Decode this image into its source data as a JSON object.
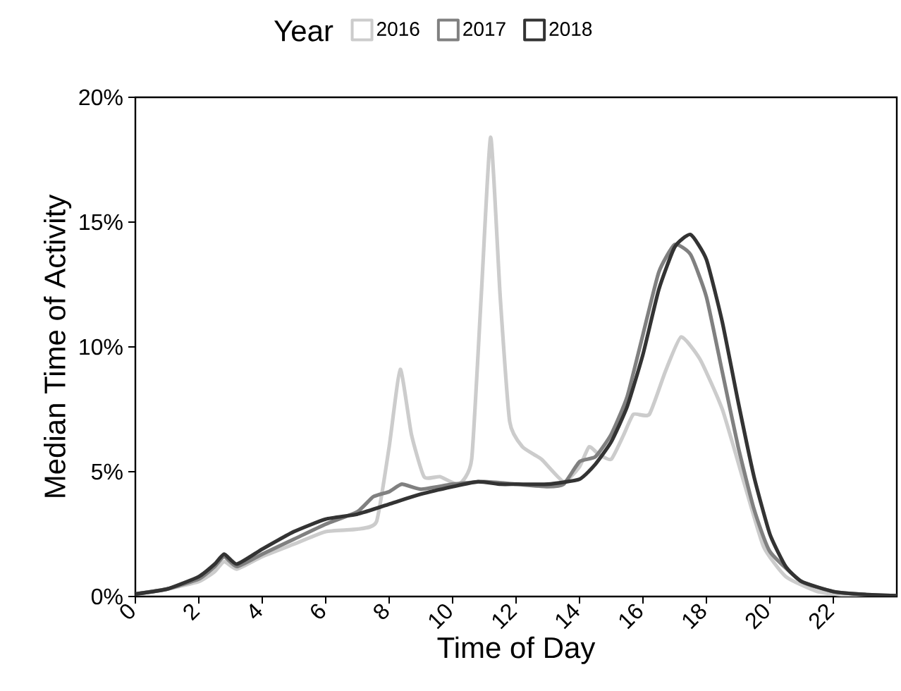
{
  "chart_data": {
    "type": "line",
    "legend_title": "Year",
    "legend": "top",
    "xlabel": "Time of Day",
    "ylabel": "Median Time of Activity",
    "xlim": [
      0,
      24
    ],
    "ylim": [
      0,
      20
    ],
    "xticks": [
      0,
      2,
      4,
      6,
      8,
      10,
      12,
      14,
      16,
      18,
      20,
      22
    ],
    "yticks": [
      {
        "value": 0,
        "label": "0%"
      },
      {
        "value": 5,
        "label": "5%"
      },
      {
        "value": 10,
        "label": "10%"
      },
      {
        "value": 15,
        "label": "15%"
      },
      {
        "value": 20,
        "label": "20%"
      }
    ],
    "series": [
      {
        "name": "2016",
        "color": "#cccccc",
        "x": [
          0,
          1,
          2,
          2.5,
          2.8,
          3.2,
          4,
          5,
          6,
          7,
          7.6,
          8.0,
          8.35,
          8.7,
          9.1,
          9.6,
          10.2,
          10.6,
          10.9,
          11.2,
          11.5,
          11.8,
          12.2,
          12.8,
          13.5,
          14.0,
          14.3,
          14.6,
          15.0,
          15.4,
          15.7,
          16.2,
          16.7,
          17.2,
          17.8,
          18.5,
          19.2,
          19.8,
          20.5,
          21.5,
          22.5,
          24
        ],
        "values": [
          0.1,
          0.3,
          0.6,
          1.0,
          1.4,
          1.1,
          1.6,
          2.1,
          2.6,
          2.7,
          3.0,
          6.0,
          9.1,
          6.5,
          4.8,
          4.8,
          4.5,
          5.5,
          12,
          18.4,
          12,
          7,
          6.0,
          5.5,
          4.6,
          5.2,
          6.0,
          5.7,
          5.5,
          6.5,
          7.3,
          7.3,
          9.0,
          10.4,
          9.5,
          7.5,
          4.5,
          2.0,
          0.8,
          0.2,
          0.05,
          0.02
        ]
      },
      {
        "name": "2017",
        "color": "#808080",
        "x": [
          0,
          1,
          2,
          2.5,
          2.8,
          3.2,
          4,
          5,
          6,
          7,
          7.5,
          8,
          8.4,
          9,
          10,
          11,
          12,
          13,
          13.5,
          14,
          14.5,
          15,
          15.5,
          16,
          16.5,
          17,
          17.5,
          18,
          18.5,
          19,
          19.5,
          20,
          21,
          22,
          23,
          24
        ],
        "values": [
          0.1,
          0.3,
          0.7,
          1.2,
          1.6,
          1.2,
          1.7,
          2.3,
          2.9,
          3.4,
          4.0,
          4.2,
          4.5,
          4.3,
          4.5,
          4.6,
          4.5,
          4.4,
          4.5,
          5.4,
          5.6,
          6.5,
          8.0,
          10.5,
          13.0,
          14.1,
          13.7,
          12.0,
          9.0,
          6.0,
          3.5,
          1.8,
          0.6,
          0.2,
          0.08,
          0.03
        ]
      },
      {
        "name": "2018",
        "color": "#333333",
        "x": [
          0,
          1,
          2,
          2.5,
          2.8,
          3.2,
          4,
          5,
          6,
          7,
          8,
          9,
          10,
          10.8,
          11.5,
          12,
          13,
          14,
          14.5,
          15,
          15.5,
          16,
          16.5,
          17,
          17.5,
          18,
          18.5,
          19,
          19.5,
          20,
          20.5,
          21,
          22,
          23,
          24
        ],
        "values": [
          0.1,
          0.3,
          0.8,
          1.3,
          1.7,
          1.3,
          1.9,
          2.6,
          3.1,
          3.3,
          3.7,
          4.1,
          4.4,
          4.6,
          4.5,
          4.5,
          4.5,
          4.7,
          5.3,
          6.2,
          7.6,
          9.7,
          12.3,
          14.0,
          14.5,
          13.5,
          11.0,
          7.8,
          4.8,
          2.5,
          1.2,
          0.6,
          0.2,
          0.08,
          0.03
        ]
      }
    ]
  }
}
